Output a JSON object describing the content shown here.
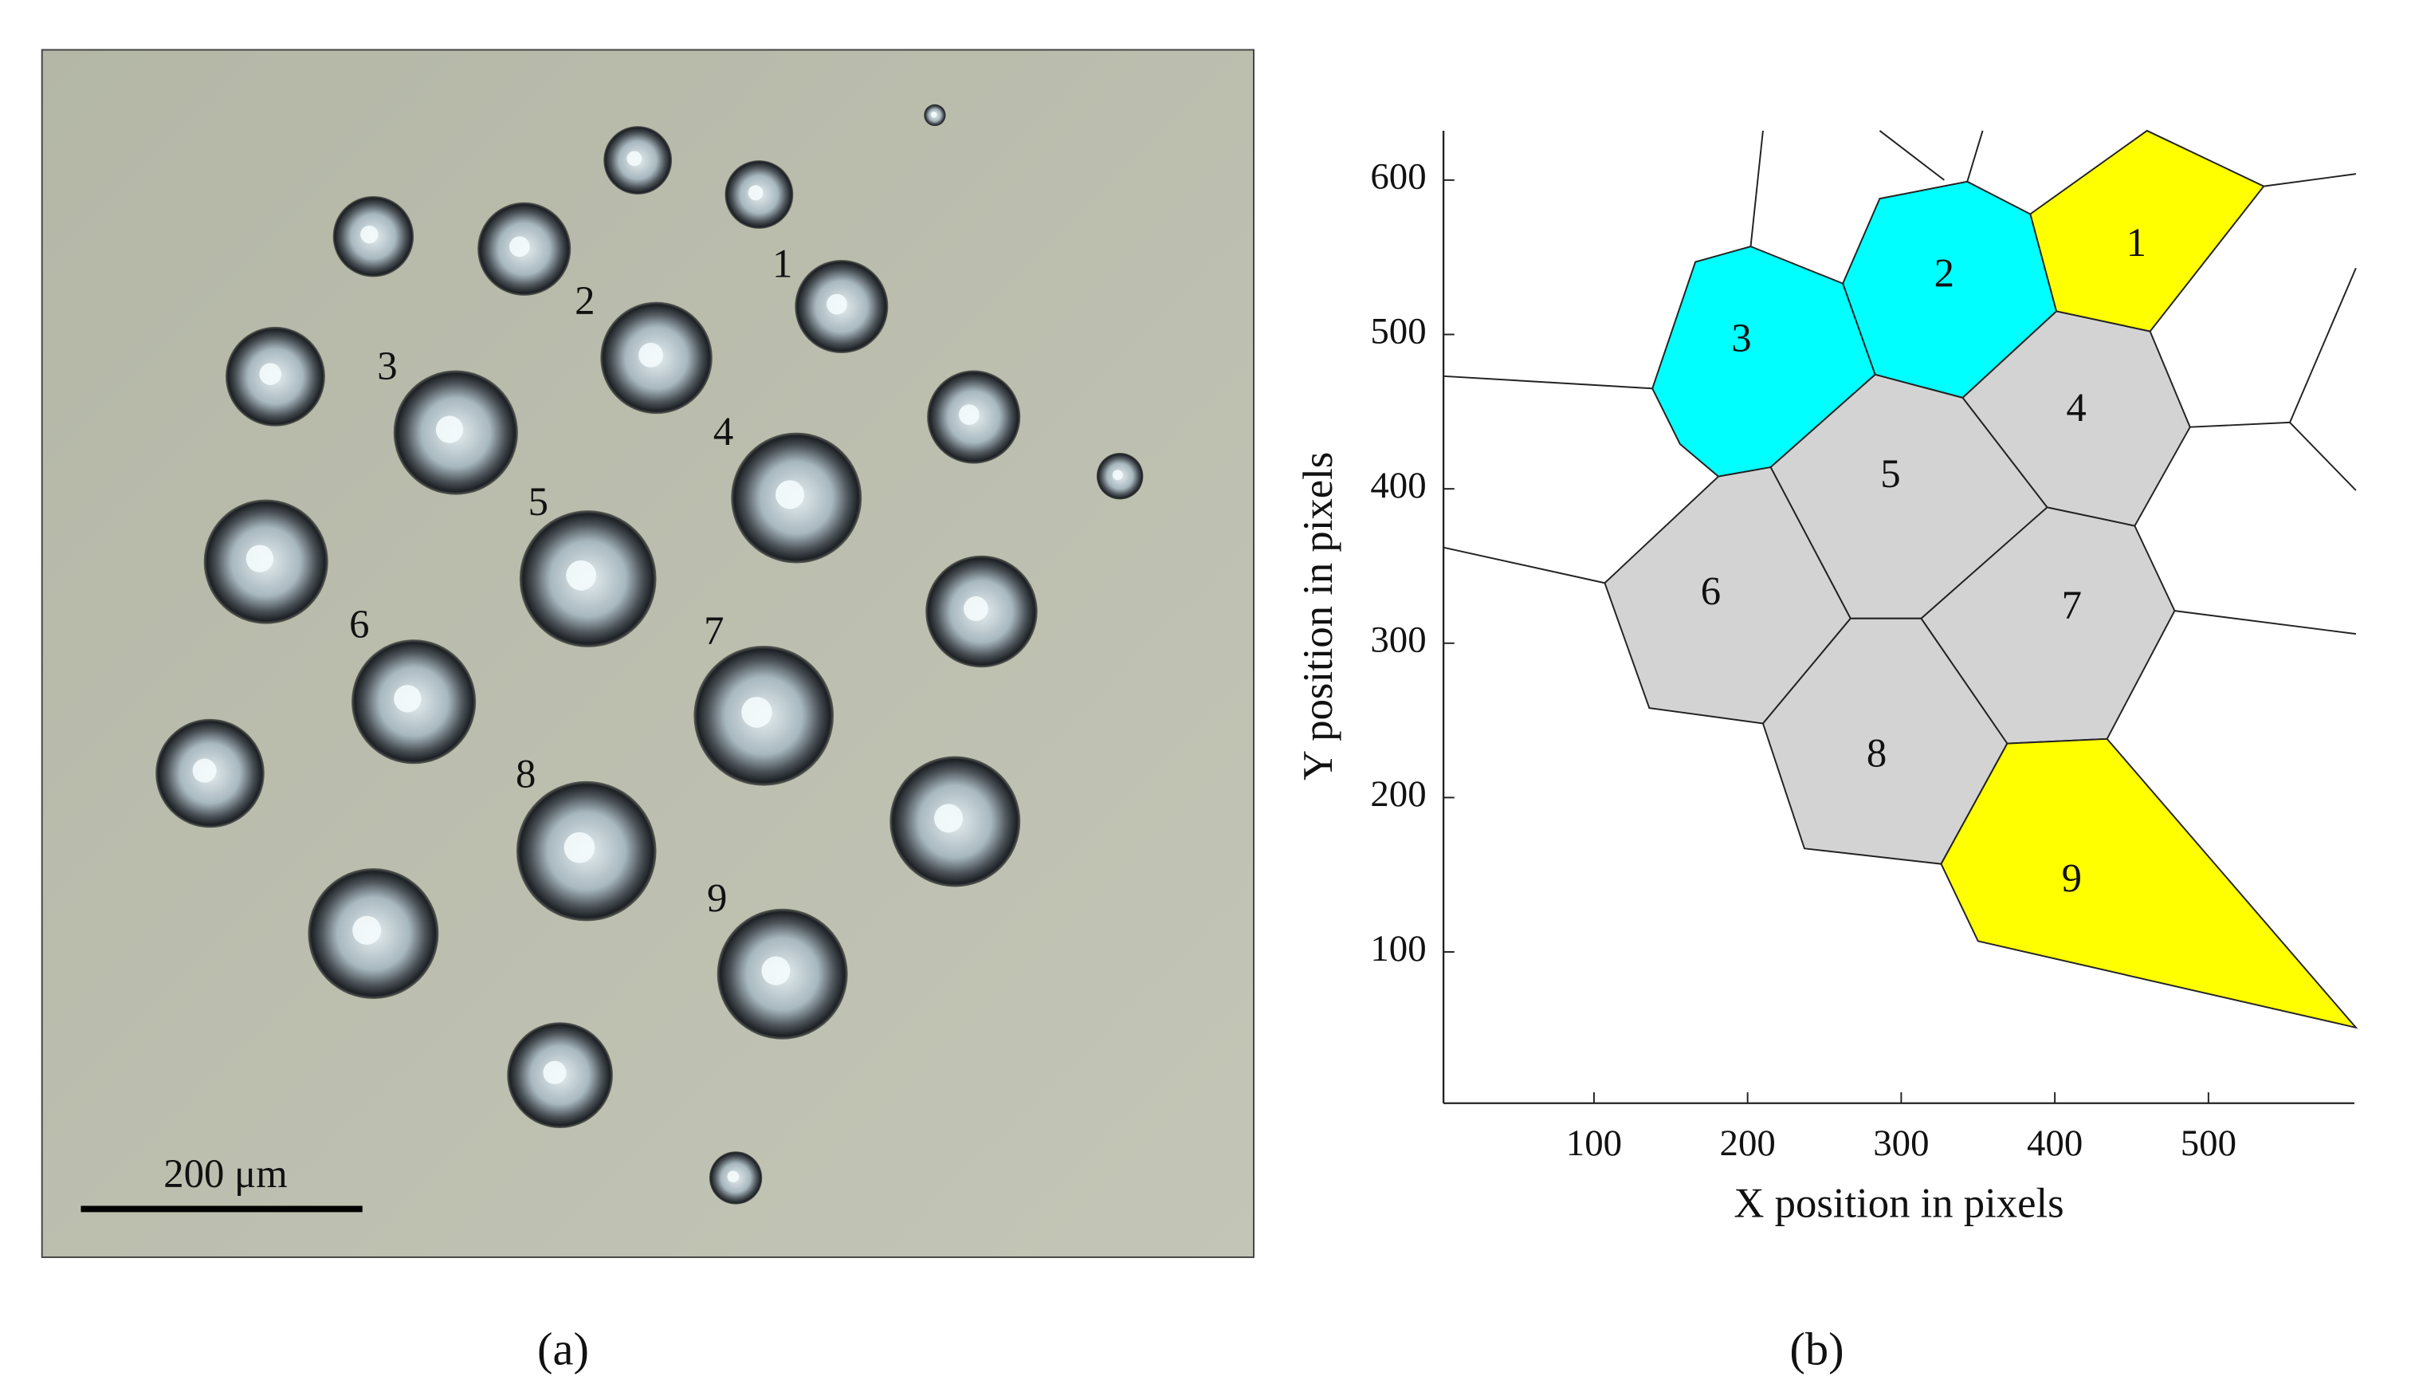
{
  "photo": {
    "droplet_labels": [
      "1",
      "2",
      "3",
      "4",
      "5",
      "6",
      "7",
      "8",
      "9"
    ],
    "scale_bar": "200 μm",
    "caption": "(a)"
  },
  "chart_data": {
    "type": "voronoi",
    "caption": "(b)",
    "xlabel": "X position in pixels",
    "ylabel": "Y position in pixels",
    "xlim": [
      0,
      595
    ],
    "ylim": [
      0,
      635
    ],
    "xticks": [
      100,
      200,
      300,
      400,
      500
    ],
    "yticks": [
      100,
      200,
      300,
      400,
      500,
      600
    ],
    "cells": [
      {
        "label": "1",
        "color": "#ffff00",
        "x": [
          384,
          460,
          536,
          462,
          401
        ],
        "y": [
          578,
          632,
          596,
          502,
          515
        ],
        "label_x": 453,
        "label_y": 557
      },
      {
        "label": "2",
        "color": "#00ffff",
        "x": [
          262,
          286,
          343,
          384,
          401,
          340,
          283
        ],
        "y": [
          533,
          588,
          599,
          578,
          515,
          459,
          474
        ],
        "label_x": 328,
        "label_y": 537
      },
      {
        "label": "3",
        "color": "#00ffff",
        "x": [
          138,
          166,
          202,
          262,
          283,
          215,
          181,
          156
        ],
        "y": [
          465,
          547,
          557,
          533,
          474,
          414,
          408,
          429
        ],
        "label_x": 196,
        "label_y": 495
      },
      {
        "label": "4",
        "color": "#d3d3d3",
        "x": [
          340,
          401,
          462,
          488,
          452,
          395
        ],
        "y": [
          459,
          515,
          502,
          440,
          376,
          388
        ],
        "label_x": 414,
        "label_y": 450
      },
      {
        "label": "5",
        "color": "#d3d3d3",
        "x": [
          215,
          283,
          340,
          395,
          313,
          267
        ],
        "y": [
          414,
          474,
          459,
          388,
          316,
          316
        ],
        "label_x": 293,
        "label_y": 407
      },
      {
        "label": "6",
        "color": "#d3d3d3",
        "x": [
          107,
          181,
          215,
          267,
          210,
          136
        ],
        "y": [
          339,
          408,
          414,
          316,
          248,
          258
        ],
        "label_x": 176,
        "label_y": 331
      },
      {
        "label": "7",
        "color": "#d3d3d3",
        "x": [
          313,
          395,
          452,
          478,
          434,
          369
        ],
        "y": [
          316,
          388,
          376,
          321,
          238,
          235
        ],
        "label_x": 411,
        "label_y": 322
      },
      {
        "label": "8",
        "color": "#d3d3d3",
        "x": [
          210,
          267,
          313,
          369,
          326,
          237
        ],
        "y": [
          248,
          316,
          316,
          235,
          157,
          167
        ],
        "label_x": 284,
        "label_y": 226
      },
      {
        "label": "9",
        "color": "#ffff00",
        "x": [
          326,
          369,
          434,
          596,
          350
        ],
        "y": [
          157,
          235,
          238,
          51,
          107
        ],
        "label_x": 411,
        "label_y": 145
      }
    ],
    "edges": [
      {
        "x": [
          138,
          2
        ],
        "y": [
          465,
          473
        ]
      },
      {
        "x": [
          202,
          210
        ],
        "y": [
          557,
          632
        ]
      },
      {
        "x": [
          343,
          353
        ],
        "y": [
          599,
          632
        ]
      },
      {
        "x": [
          286,
          328
        ],
        "y": [
          632,
          600
        ]
      },
      {
        "x": [
          536,
          596
        ],
        "y": [
          596,
          604
        ]
      },
      {
        "x": [
          488,
          553
        ],
        "y": [
          440,
          443
        ]
      },
      {
        "x": [
          553,
          596
        ],
        "y": [
          443,
          399
        ]
      },
      {
        "x": [
          553,
          596
        ],
        "y": [
          443,
          543
        ]
      },
      {
        "x": [
          478,
          596
        ],
        "y": [
          321,
          306
        ]
      },
      {
        "x": [
          107,
          2
        ],
        "y": [
          339,
          362
        ]
      }
    ]
  }
}
